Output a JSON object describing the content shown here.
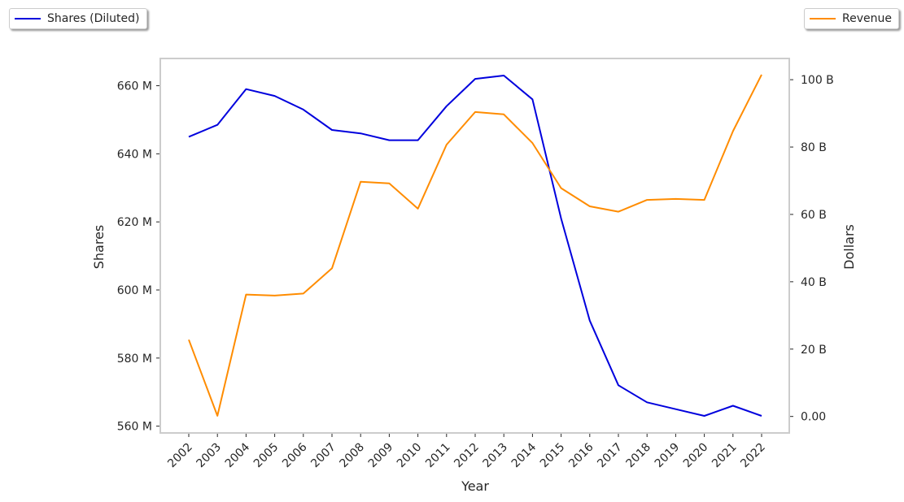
{
  "chart_data": {
    "type": "line",
    "title": "",
    "xlabel": "Year",
    "ylabel_left": "Shares",
    "ylabel_right": "Dollars",
    "categories": [
      "2002",
      "2003",
      "2004",
      "2005",
      "2006",
      "2007",
      "2008",
      "2009",
      "2010",
      "2011",
      "2012",
      "2013",
      "2014",
      "2015",
      "2016",
      "2017",
      "2018",
      "2019",
      "2020",
      "2021",
      "2022"
    ],
    "y_left": {
      "lim": [
        558,
        668
      ],
      "ticks": [
        560,
        580,
        600,
        620,
        640,
        660
      ],
      "tick_labels": [
        "560 M",
        "580 M",
        "600 M",
        "620 M",
        "640 M",
        "660 M"
      ]
    },
    "y_right": {
      "lim": [
        -4.9,
        106.3
      ],
      "ticks": [
        0,
        20,
        40,
        60,
        80,
        100
      ],
      "tick_labels": [
        "0.00",
        "20 B",
        "40 B",
        "60 B",
        "80 B",
        "100 B"
      ]
    },
    "series": [
      {
        "name": "Shares (Diluted)",
        "axis": "left",
        "color": "#0000dd",
        "values": [
          645,
          648.5,
          659,
          657,
          653,
          647,
          646,
          644,
          644,
          654,
          662,
          663,
          656,
          621,
          591,
          572,
          567,
          565,
          563,
          566,
          563
        ]
      },
      {
        "name": "Revenue",
        "axis": "right",
        "color": "#ff8c00",
        "values": [
          22.8,
          0.2,
          36.2,
          35.9,
          36.5,
          44.0,
          69.7,
          69.2,
          61.7,
          80.7,
          90.4,
          89.7,
          81.2,
          67.8,
          62.4,
          60.8,
          64.3,
          64.6,
          64.3,
          84.7,
          101.5
        ]
      }
    ],
    "legend": [
      {
        "label": "Shares (Diluted)",
        "placement": "top-left"
      },
      {
        "label": "Revenue",
        "placement": "top-right"
      }
    ],
    "grid": false
  }
}
